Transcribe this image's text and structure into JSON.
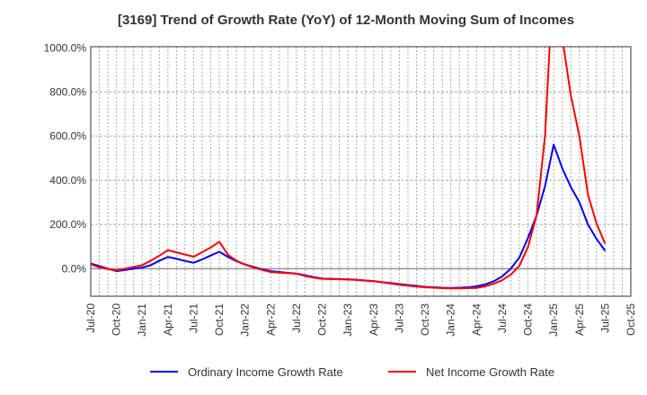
{
  "chart_data": {
    "type": "line",
    "title": "[3169]  Trend of Growth Rate (YoY) of 12-Month Moving Sum of Incomes",
    "xlabel": "",
    "ylabel": "",
    "ylim": [
      -130,
      1000
    ],
    "xlim": [
      "Jul-20",
      "Oct-25"
    ],
    "grid": true,
    "legend_position": "bottom",
    "y_ticks": [
      0,
      200,
      400,
      600,
      800,
      1000
    ],
    "y_tick_labels": [
      "0.0%",
      "200.0%",
      "400.0%",
      "600.0%",
      "800.0%",
      "1000.0%"
    ],
    "x_tick_labels": [
      "Jul-20",
      "Oct-20",
      "Jan-21",
      "Apr-21",
      "Jul-21",
      "Oct-21",
      "Jan-22",
      "Apr-22",
      "Jul-22",
      "Oct-22",
      "Jan-23",
      "Apr-23",
      "Jul-23",
      "Oct-23",
      "Jan-24",
      "Apr-24",
      "Jul-24",
      "Oct-24",
      "Jan-25",
      "Apr-25",
      "Jul-25",
      "Oct-25"
    ],
    "x": [
      "Jul-20",
      "Aug-20",
      "Sep-20",
      "Oct-20",
      "Nov-20",
      "Dec-20",
      "Jan-21",
      "Feb-21",
      "Mar-21",
      "Apr-21",
      "May-21",
      "Jun-21",
      "Jul-21",
      "Aug-21",
      "Sep-21",
      "Oct-21",
      "Nov-21",
      "Dec-21",
      "Jan-22",
      "Feb-22",
      "Mar-22",
      "Apr-22",
      "May-22",
      "Jun-22",
      "Jul-22",
      "Aug-22",
      "Sep-22",
      "Oct-22",
      "Nov-22",
      "Dec-22",
      "Jan-23",
      "Feb-23",
      "Mar-23",
      "Apr-23",
      "May-23",
      "Jun-23",
      "Jul-23",
      "Aug-23",
      "Sep-23",
      "Oct-23",
      "Nov-23",
      "Dec-23",
      "Jan-24",
      "Feb-24",
      "Mar-24",
      "Apr-24",
      "May-24",
      "Jun-24",
      "Jul-24",
      "Aug-24",
      "Sep-24",
      "Oct-24",
      "Nov-24",
      "Dec-24",
      "Jan-25",
      "Feb-25",
      "Mar-25",
      "Apr-25",
      "May-25",
      "Jun-25",
      "Jul-25"
    ],
    "series": [
      {
        "name": "Ordinary Income Growth Rate",
        "color": "#0000ff",
        "values": [
          23,
          12,
          0,
          -11,
          -6,
          0,
          5,
          16,
          36,
          53,
          45,
          35,
          27,
          42,
          60,
          77,
          53,
          34,
          19,
          8,
          -3,
          -11,
          -15,
          -19,
          -22,
          -30,
          -38,
          -45,
          -46,
          -47,
          -48,
          -50,
          -53,
          -56,
          -61,
          -65,
          -70,
          -74,
          -78,
          -82,
          -84,
          -86,
          -87,
          -86,
          -84,
          -80,
          -71,
          -57,
          -35,
          0,
          51,
          139,
          240,
          375,
          562,
          455,
          370,
          301,
          200,
          135,
          81
        ]
      },
      {
        "name": "Net Income Growth Rate",
        "color": "#ff0000",
        "values": [
          20,
          6,
          -2,
          -8,
          0,
          8,
          16,
          36,
          59,
          84,
          74,
          64,
          54,
          75,
          96,
          122,
          63,
          36,
          19,
          5,
          -6,
          -15,
          -18,
          -20,
          -23,
          -33,
          -41,
          -46,
          -47,
          -48,
          -49,
          -51,
          -54,
          -57,
          -62,
          -67,
          -73,
          -77,
          -81,
          -84,
          -86,
          -88,
          -89,
          -89,
          -88,
          -87,
          -80,
          -68,
          -52,
          -27,
          13,
          98,
          240,
          605,
          1360,
          1045,
          785,
          600,
          335,
          205,
          113
        ]
      }
    ]
  }
}
